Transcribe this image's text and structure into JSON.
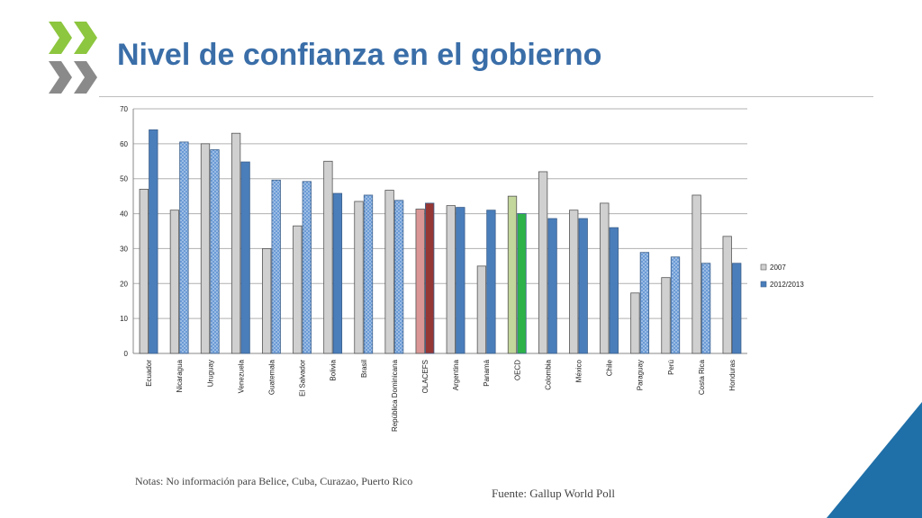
{
  "header": {
    "title": "Nivel de confianza en el gobierno"
  },
  "footer": {
    "notes": "Notas: No información para Belice, Cuba, Curazao, Puerto Rico",
    "source": "Fuente: Gallup World Poll"
  },
  "colors": {
    "title": "#3a6ea8",
    "bar_2007": "#d0d0d0",
    "bar_2012": "#4a7ebb",
    "olacefs_2007": "#d99694",
    "olacefs_2012": "#953735",
    "oecd_2007": "#c3d69b",
    "oecd_2012": "#2db24a",
    "logo": "#8dc63f",
    "corner": "#1f6fa8"
  },
  "chart_data": {
    "type": "bar",
    "categories": [
      "Ecuador",
      "Nicaragua",
      "Uruguay",
      "Venezuela",
      "Guatemala",
      "El Salvador",
      "Bolivia",
      "Brasil",
      "República Dominicana",
      "OLACEFS",
      "Argentina",
      "Panamá",
      "OECD",
      "Colombia",
      "México",
      "Chile",
      "Paraguay",
      "Perú",
      "Costa Rica",
      "Honduras"
    ],
    "series": [
      {
        "name": "2007",
        "values": [
          47,
          41,
          60,
          63,
          30,
          36.5,
          55,
          43.5,
          46.7,
          41.3,
          42.3,
          25,
          45,
          52,
          41,
          43,
          17.3,
          21.7,
          45.3,
          33.5
        ]
      },
      {
        "name": "2012/2013",
        "values": [
          64,
          60.5,
          58.3,
          54.8,
          49.6,
          49.2,
          45.8,
          45.3,
          43.8,
          43,
          41.8,
          41,
          40,
          38.6,
          38.6,
          36,
          28.9,
          27.6,
          25.8,
          25.8
        ]
      }
    ],
    "patterned_2012": [
      "Nicaragua",
      "Uruguay",
      "Guatemala",
      "El Salvador",
      "Brasil",
      "República Dominicana",
      "Paraguay",
      "Perú",
      "Costa Rica"
    ],
    "yticks": [
      "0",
      "10",
      "20",
      "30",
      "40",
      "50",
      "60",
      "70"
    ],
    "ylim": [
      0,
      70
    ],
    "grid": true,
    "legend_position": "right",
    "xlabel": "",
    "ylabel": ""
  }
}
